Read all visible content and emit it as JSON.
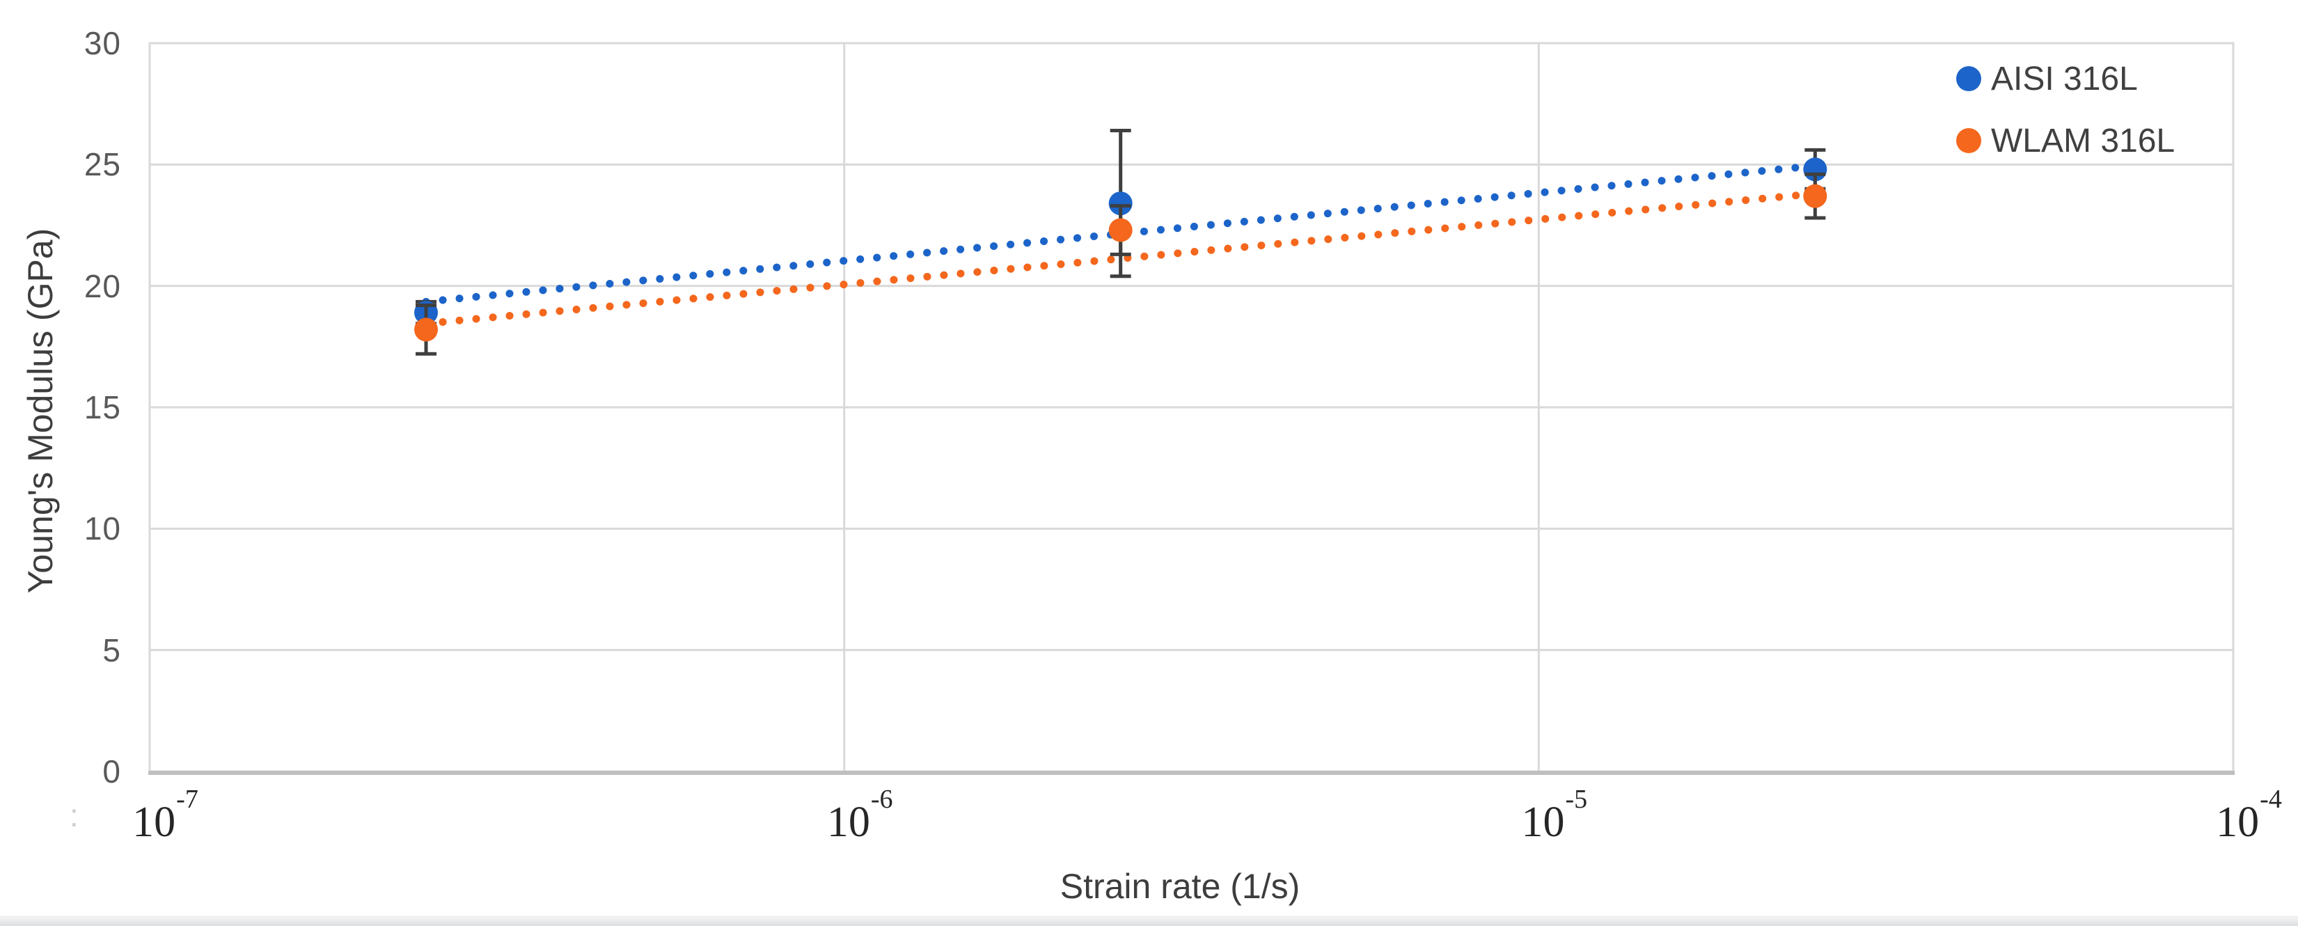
{
  "chart_data": {
    "type": "scatter",
    "title": "",
    "xlabel": "Strain rate (1/s)",
    "ylabel": "Young's Modulus (GPa)",
    "x_scale": "log",
    "x_range": [
      1e-07,
      0.0001
    ],
    "y_range": [
      0,
      30
    ],
    "grid": true,
    "legend_position": "top-right-inside",
    "x_ticks": [
      {
        "value": 1e-07,
        "label": "10^-7"
      },
      {
        "value": 1e-06,
        "label": "10^-6"
      },
      {
        "value": 1e-05,
        "label": "10^-5"
      },
      {
        "value": 0.0001,
        "label": "10^-4"
      }
    ],
    "y_ticks": [
      0,
      5,
      10,
      15,
      20,
      25,
      30
    ],
    "series": [
      {
        "name": "AISI 316L",
        "color": "#1c64c9",
        "marker": "circle",
        "x": [
          2.5e-07,
          2.5e-06,
          2.5e-05
        ],
        "y": [
          18.9,
          23.4,
          24.8
        ],
        "y_err": [
          0.45,
          3.0,
          0.8
        ],
        "trendline": {
          "style": "dotted",
          "x": [
            2.5e-07,
            2.5e-05
          ],
          "y": [
            19.35,
            24.95
          ]
        }
      },
      {
        "name": "WLAM 316L",
        "color": "#f4671d",
        "marker": "circle",
        "x": [
          2.5e-07,
          2.5e-06,
          2.5e-05
        ],
        "y": [
          18.2,
          22.3,
          23.7
        ],
        "y_err": [
          1.0,
          1.0,
          0.9
        ],
        "trendline": {
          "style": "dotted",
          "x": [
            2.5e-07,
            2.5e-05
          ],
          "y": [
            18.45,
            23.8
          ]
        }
      }
    ],
    "colors": {
      "gridline": "#d9d9d9",
      "plot_border": "#d9d9d9",
      "axis_line": "#bfbfbf",
      "error_bar": "#3f3f3f",
      "y_tick_text": "#595959",
      "x_tick_text": "#262626",
      "axis_title_text": "#3d3d3d",
      "legend_text": "#404040"
    }
  },
  "artifact": ":"
}
